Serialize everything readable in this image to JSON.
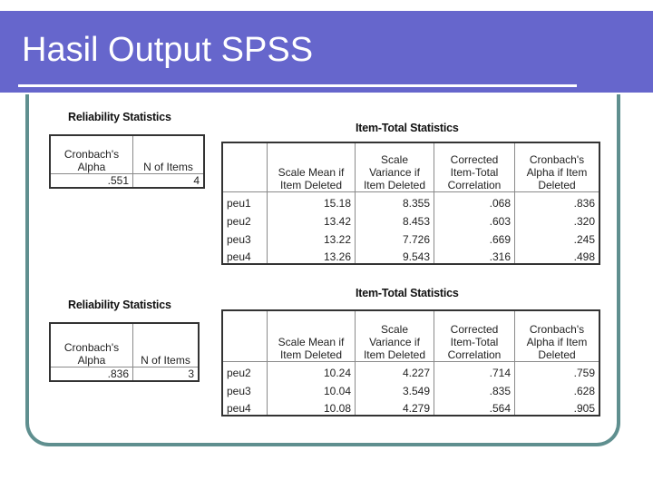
{
  "slide": {
    "title": "Hasil Output SPSS"
  },
  "reliability1": {
    "caption": "Reliability Statistics",
    "headers": [
      "Cronbach's Alpha",
      "N of Items"
    ],
    "values": [
      ".551",
      "4"
    ]
  },
  "itemtotal1": {
    "caption": "Item-Total Statistics",
    "headers": [
      "Scale Mean if Item Deleted",
      "Scale Variance if Item Deleted",
      "Corrected Item-Total Correlation",
      "Cronbach's Alpha if Item Deleted"
    ],
    "rows": [
      {
        "label": "peu1",
        "values": [
          "15.18",
          "8.355",
          ".068",
          ".836"
        ]
      },
      {
        "label": "peu2",
        "values": [
          "13.42",
          "8.453",
          ".603",
          ".320"
        ]
      },
      {
        "label": "peu3",
        "values": [
          "13.22",
          "7.726",
          ".669",
          ".245"
        ]
      },
      {
        "label": "peu4",
        "values": [
          "13.26",
          "9.543",
          ".316",
          ".498"
        ]
      }
    ]
  },
  "reliability2": {
    "caption": "Reliability Statistics",
    "headers": [
      "Cronbach's Alpha",
      "N of Items"
    ],
    "values": [
      ".836",
      "3"
    ]
  },
  "itemtotal2": {
    "caption": "Item-Total Statistics",
    "headers": [
      "Scale Mean if Item Deleted",
      "Scale Variance if Item Deleted",
      "Corrected Item-Total Correlation",
      "Cronbach's Alpha if Item Deleted"
    ],
    "rows": [
      {
        "label": "peu2",
        "values": [
          "10.24",
          "4.227",
          ".714",
          ".759"
        ]
      },
      {
        "label": "peu3",
        "values": [
          "10.04",
          "3.549",
          ".835",
          ".628"
        ]
      },
      {
        "label": "peu4",
        "values": [
          "10.08",
          "4.279",
          ".564",
          ".905"
        ]
      }
    ]
  }
}
